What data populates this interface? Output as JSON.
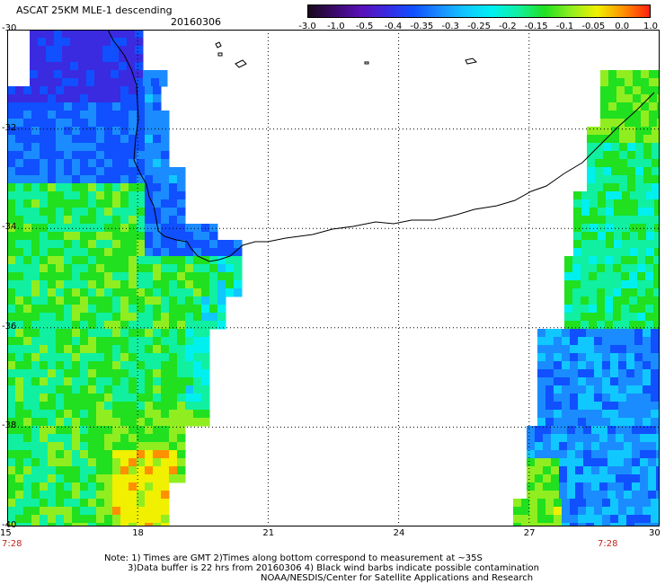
{
  "header": {
    "title": "ASCAT 25KM MLE-1 descending",
    "date": "20160306"
  },
  "colorbar": {
    "tick_labels": [
      "-3.0",
      "-1.0",
      "-0.5",
      "-0.4",
      "-0.35",
      "-0.3",
      "-0.25",
      "-0.2",
      "-0.15",
      "-0.1",
      "-0.05",
      "0.0",
      "1.0"
    ],
    "colors": [
      "#1a0a1c",
      "#3a0a6a",
      "#5a10b8",
      "#3a2ae0",
      "#1050ff",
      "#1a8cff",
      "#10c8ff",
      "#00f0f0",
      "#10f0a0",
      "#20e020",
      "#90ee20",
      "#f0f000",
      "#ff9000",
      "#ff2010"
    ]
  },
  "map": {
    "lon_range": [
      15,
      30
    ],
    "lat_range": [
      -40,
      -30
    ],
    "lon_labels": [
      "15",
      "18",
      "21",
      "24",
      "27",
      "30"
    ],
    "lat_labels": [
      "-30",
      "-32",
      "-34",
      "-36",
      "-38",
      "-40"
    ],
    "grid": "dotted",
    "time_labels": [
      "7:28",
      "7:28"
    ]
  },
  "footer": {
    "line1": "Note: 1) Times are GMT 2)Times along bottom correspond to measurement at ~35S",
    "line2": "3)Data buffer is 22 hrs from 20160306 4) Black wind barbs indicate possible contamination",
    "line3": "NOAA/NESDIS/Center for Satellite Applications and Research"
  }
}
